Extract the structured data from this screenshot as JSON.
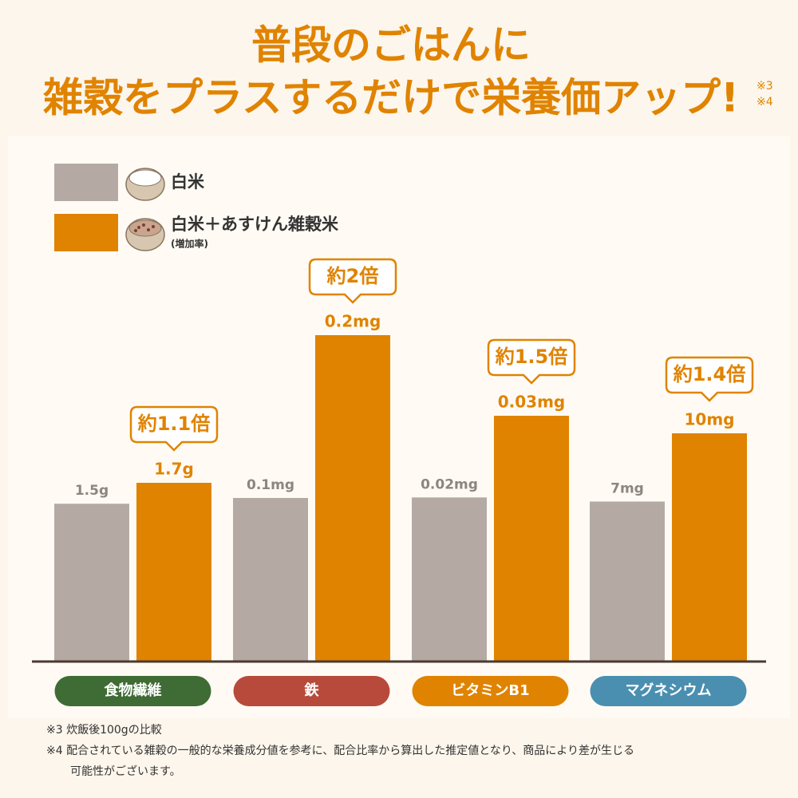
{
  "chart_data": {
    "type": "bar",
    "title": [
      "普段のごはんに",
      "雑穀をプラスするだけで栄養価アップ!"
    ],
    "title_marks": [
      "※3",
      "※4"
    ],
    "categories": [
      "食物繊維",
      "鉄",
      "ビタミンB1",
      "マグネシウム"
    ],
    "category_colors": [
      "#3f6b35",
      "#b84a3c",
      "#e08300",
      "#4a8fb0"
    ],
    "series": [
      {
        "name": "白米",
        "color": "#b5aaa3",
        "values": [
          1.5,
          0.1,
          0.02,
          7
        ],
        "value_labels": [
          "1.5g",
          "0.1mg",
          "0.02mg",
          "7mg"
        ]
      },
      {
        "name": "白米＋あすけん雑穀米",
        "color": "#e08300",
        "values": [
          1.7,
          0.2,
          0.03,
          10
        ],
        "value_labels": [
          "1.7g",
          "0.2mg",
          "0.03mg",
          "10mg"
        ]
      }
    ],
    "legend_note": "(増加率)",
    "annotations": [
      "約1.1倍",
      "約2倍",
      "約1.5倍",
      "約1.4倍"
    ],
    "notes": [
      "※3 炊飯後100gの比較",
      "※4 配合されている雑穀の一般的な栄養成分値を参考に、配合比率から算出した推定値となり、商品により差が生じる",
      "可能性がございます。"
    ]
  }
}
